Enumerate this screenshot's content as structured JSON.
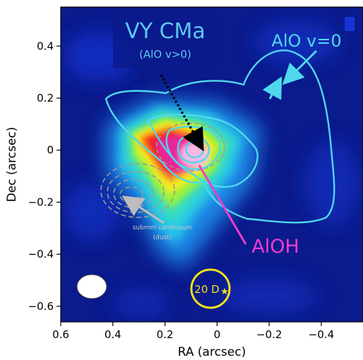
{
  "chart_data": {
    "type": "heatmap",
    "title": "VY CMa",
    "subtitle": "(AlO v>0)",
    "xlabel": "RA (arcsec)",
    "ylabel": "Dec (arcsec)",
    "xlim": [
      0.6,
      -0.56
    ],
    "ylim": [
      -0.66,
      0.55
    ],
    "x_ticks": [
      0.6,
      0.4,
      0.2,
      0,
      -0.2,
      -0.4
    ],
    "x_tick_labels": [
      "0.6",
      "0.4",
      "0.2",
      "0",
      "−0.2",
      "−0.4"
    ],
    "y_ticks": [
      0.4,
      0.2,
      0,
      -0.2,
      -0.4,
      -0.6
    ],
    "y_tick_labels": [
      "0.4",
      "0.2",
      "0",
      "−0.2",
      "−0.4",
      "−0.6"
    ],
    "colormap": [
      "#0b1a8c",
      "#1535d6",
      "#1f86e6",
      "#26c9e6",
      "#3fe0b0",
      "#9af03c",
      "#f2ee22",
      "#ff8c14",
      "#f21a1a",
      "#e8289c",
      "#f9b8e4"
    ],
    "emission_peak": {
      "ra": 0.1,
      "dec": 0.01
    },
    "annotations": {
      "alo_label": "AlO v=0",
      "aloh_label": "AlOH",
      "submm_label_1": "submm continuum",
      "submm_label_2": "(dust)",
      "scale_label": "20 D"
    },
    "colors": {
      "alo_contour": "#4fd8ec",
      "aloh": "#f03ccb",
      "submm_contour": "#9a9a9a",
      "scale_circle": "#f2e21a",
      "title_text": "#5ec8f0",
      "background_low": "#0b1a8c"
    },
    "icons": [
      "star-icon",
      "arrow-icon",
      "beam-ellipse-icon"
    ]
  }
}
